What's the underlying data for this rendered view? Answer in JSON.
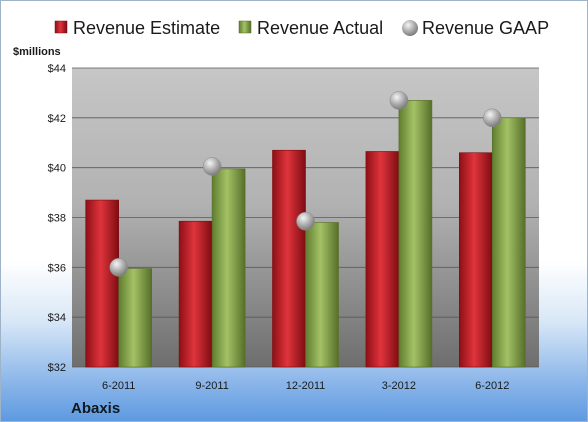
{
  "chart_data": {
    "type": "bar",
    "categories": [
      "6-2011",
      "9-2011",
      "12-2011",
      "3-2012",
      "6-2012"
    ],
    "series": [
      {
        "name": "Revenue Estimate",
        "kind": "bar",
        "color": "#d0202a",
        "values": [
          38.7,
          37.85,
          40.7,
          40.65,
          40.6
        ]
      },
      {
        "name": "Revenue Actual",
        "kind": "bar",
        "color": "#8aac4e",
        "values": [
          35.95,
          39.95,
          37.8,
          42.7,
          42.0
        ]
      },
      {
        "name": "Revenue GAAP",
        "kind": "marker",
        "color": "#b0b0b0",
        "values": [
          36.0,
          40.05,
          37.85,
          42.7,
          42.0
        ]
      }
    ],
    "ylabel": "$millions",
    "ylim": [
      32,
      44
    ],
    "yticks": [
      "$32",
      "$34",
      "$36",
      "$38",
      "$40",
      "$42",
      "$44"
    ],
    "grid": true,
    "legend": "top"
  },
  "company": "Abaxis"
}
